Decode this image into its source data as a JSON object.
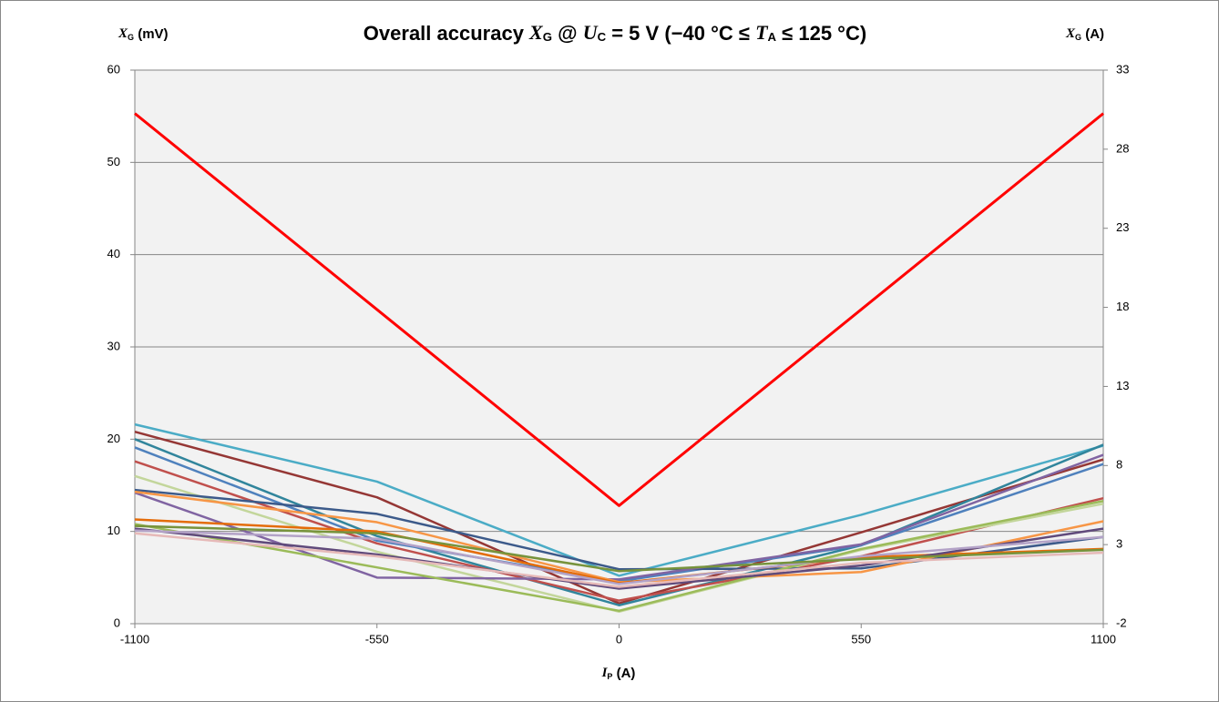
{
  "chart_data": {
    "type": "line",
    "title": [
      "Overall accuracy ",
      "X",
      "G",
      " @ ",
      "U",
      "C",
      " = 5 V (−40 °C ≤ ",
      "T",
      "A",
      " ≤ 125 °C)"
    ],
    "y_label": [
      "X",
      "G",
      " (mV)"
    ],
    "y2_label": [
      "X",
      "G",
      " (A)"
    ],
    "x_label": [
      "I",
      "P",
      " (A)"
    ],
    "x": [
      -1100,
      -550,
      0,
      550,
      1100
    ],
    "xlim": [
      -1100,
      1100
    ],
    "xticks": [
      -1100,
      -550,
      0,
      550,
      1100
    ],
    "ylim": [
      0,
      60
    ],
    "yticks": [
      0,
      10,
      20,
      30,
      40,
      50,
      60
    ],
    "y2lim": [
      -2,
      33
    ],
    "y2ticks": [
      -2,
      3,
      8,
      13,
      18,
      23,
      28,
      33
    ],
    "grid": true,
    "series": [
      {
        "color": "#4bacc6",
        "values": [
          21.6,
          15.4,
          5.2,
          11.8,
          19.3
        ]
      },
      {
        "color": "#953735",
        "values": [
          20.8,
          13.7,
          2.2,
          9.9,
          17.8
        ]
      },
      {
        "color": "#31859c",
        "values": [
          20.0,
          9.5,
          2.0,
          8.5,
          19.4
        ]
      },
      {
        "color": "#4f81bd",
        "values": [
          19.1,
          9.0,
          4.6,
          8.5,
          17.3
        ]
      },
      {
        "color": "#c0504d",
        "values": [
          17.6,
          8.7,
          2.5,
          7.3,
          13.6
        ]
      },
      {
        "color": "#c3d69b",
        "values": [
          16.0,
          7.8,
          1.3,
          8.0,
          13.0
        ]
      },
      {
        "color": "#3c5a8a",
        "values": [
          14.5,
          11.9,
          5.9,
          6.0,
          9.4
        ]
      },
      {
        "color": "#8064a2",
        "values": [
          14.2,
          5.0,
          4.8,
          8.6,
          18.3
        ]
      },
      {
        "color": "#f79646",
        "values": [
          14.3,
          11.0,
          4.5,
          5.6,
          11.1
        ]
      },
      {
        "color": "#e46c0a",
        "values": [
          11.3,
          10.0,
          4.4,
          7.2,
          8.1
        ]
      },
      {
        "color": "#9bbb59",
        "values": [
          10.8,
          6.1,
          1.4,
          8.1,
          13.3
        ]
      },
      {
        "color": "#604a7b",
        "values": [
          10.3,
          7.5,
          3.8,
          6.3,
          10.3
        ]
      },
      {
        "color": "#b3a2c7",
        "values": [
          10.1,
          9.2,
          4.3,
          7.3,
          9.4
        ]
      },
      {
        "color": "#e6b9b8",
        "values": [
          9.8,
          7.3,
          4.0,
          6.6,
          7.7
        ]
      },
      {
        "color": "#77933c",
        "values": [
          10.6,
          9.8,
          5.7,
          7.0,
          8.0
        ]
      },
      {
        "color": "#ff0000",
        "values": [
          55.3,
          34.05,
          12.8,
          34.05,
          55.3
        ]
      }
    ]
  }
}
